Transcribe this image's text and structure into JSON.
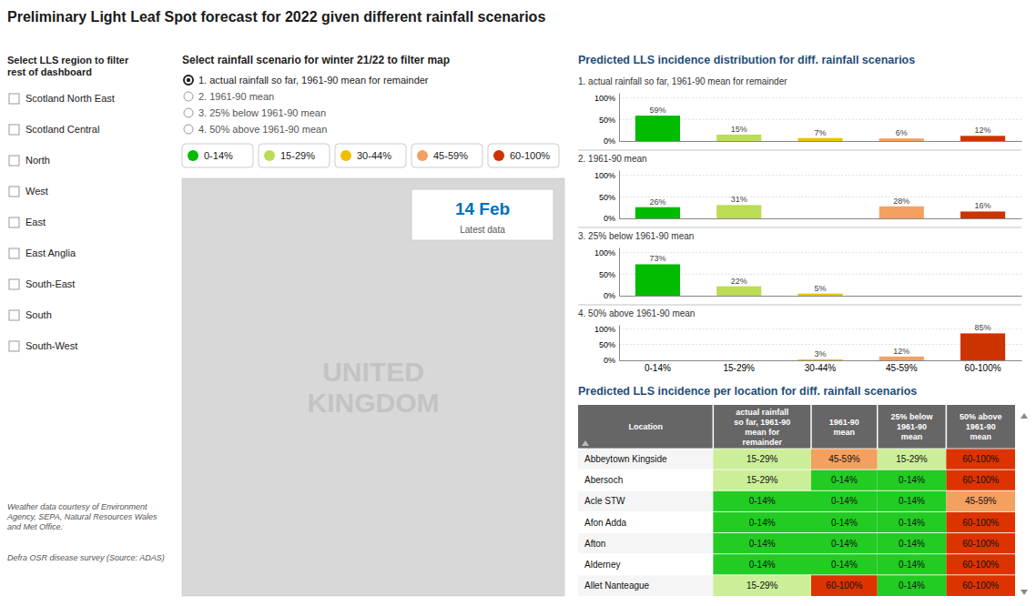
{
  "title": "Preliminary Light Leaf Spot forecast for 2022 given different rainfall scenarios",
  "region_filter": {
    "title": "Select LLS region to filter\nrest of dashboard",
    "options": [
      "Scotland North East",
      "Scotland Central",
      "North",
      "West",
      "East",
      "East Anglia",
      "South-East",
      "South",
      "South-West"
    ]
  },
  "scenario_filter": {
    "title": "Select rainfall scenario for winter 21/22 to filter map",
    "options": [
      "1. actual rainfall so far, 1961-90 mean for remainder",
      "2. 1961-90 mean",
      "3. 25% below 1961-90 mean",
      "4. 50% above 1961-90 mean"
    ]
  },
  "incidence_legend": [
    {
      "label": "0-14%",
      "color": "#00bb00"
    },
    {
      "label": "15-29%",
      "color": "#bbdd55"
    },
    {
      "label": "30-44%",
      "color": "#f0c000"
    },
    {
      "label": "45-59%",
      "color": "#f4a060"
    },
    {
      "label": "60-100%",
      "color": "#cc3300"
    }
  ],
  "map": {
    "text": "UNITED\nKINGDOM",
    "date": "14 Feb",
    "date_color": "#0070c0",
    "note": "Latest data"
  },
  "bar_section_title": "Predicted LLS incidence distribution for diff. rainfall scenarios",
  "chart_data": [
    {
      "type": "bar",
      "title": "1. actual rainfall so far, 1961-90 mean for remainder",
      "categories": [
        "0-14%",
        "15-29%",
        "30-44%",
        "45-59%",
        "60-100%"
      ],
      "values": [
        59,
        15,
        7,
        6,
        12
      ],
      "value_labels": [
        "59%",
        "15%",
        "7%",
        "6%",
        "12%"
      ],
      "colors": [
        "#00bb00",
        "#bbdd55",
        "#f0c000",
        "#f4a060",
        "#cc3300"
      ],
      "data_labels": true,
      "ylim": [
        0,
        112
      ],
      "yticks": [
        {
          "value": 0,
          "label": "0%"
        },
        {
          "value": 50,
          "label": "50%"
        },
        {
          "value": 100,
          "label": "100%"
        }
      ],
      "grid": true,
      "tick_labels": "y"
    },
    {
      "type": "bar",
      "title": "2. 1961-90 mean",
      "categories": [
        "0-14%",
        "15-29%",
        "30-44%",
        "45-59%",
        "60-100%"
      ],
      "values": [
        26,
        31,
        0,
        28,
        16
      ],
      "value_labels": [
        "26%",
        "31%",
        null,
        "28%",
        "16%"
      ],
      "colors": [
        "#00bb00",
        "#bbdd55",
        "#f0c000",
        "#f4a060",
        "#cc3300"
      ],
      "data_labels": true,
      "ylim": [
        0,
        112
      ],
      "yticks": [
        {
          "value": 0,
          "label": "0%"
        },
        {
          "value": 50,
          "label": "50%"
        },
        {
          "value": 100,
          "label": "100%"
        }
      ],
      "grid": true,
      "tick_labels": "y"
    },
    {
      "type": "bar",
      "title": "3. 25% below 1961-90 mean",
      "categories": [
        "0-14%",
        "15-29%",
        "30-44%",
        "45-59%",
        "60-100%"
      ],
      "values": [
        73,
        22,
        5,
        0,
        0
      ],
      "value_labels": [
        "73%",
        "22%",
        "5%",
        null,
        null
      ],
      "colors": [
        "#00bb00",
        "#bbdd55",
        "#f0c000",
        "#f4a060",
        "#cc3300"
      ],
      "data_labels": true,
      "ylim": [
        0,
        112
      ],
      "yticks": [
        {
          "value": 0,
          "label": "0%"
        },
        {
          "value": 50,
          "label": "50%"
        },
        {
          "value": 100,
          "label": "100%"
        }
      ],
      "grid": true,
      "tick_labels": "y"
    },
    {
      "type": "bar",
      "title": "4. 50% above 1961-90 mean",
      "categories": [
        "0-14%",
        "15-29%",
        "30-44%",
        "45-59%",
        "60-100%"
      ],
      "values": [
        0,
        0,
        3,
        12,
        85
      ],
      "value_labels": [
        null,
        null,
        "3%",
        "12%",
        "85%"
      ],
      "colors": [
        "#00bb00",
        "#bbdd55",
        "#f0c000",
        "#f4a060",
        "#cc3300"
      ],
      "data_labels": true,
      "ylim": [
        0,
        112
      ],
      "yticks": [
        {
          "value": 0,
          "label": "0%"
        },
        {
          "value": 50,
          "label": "50%"
        },
        {
          "value": 100,
          "label": "100%"
        }
      ],
      "grid": true
    }
  ],
  "table": {
    "title": "Predicted LLS incidence per location for diff. rainfall scenarios",
    "headers": [
      "Location",
      "actual rainfall\nso far, 1961-90\nmean for\nremainder",
      "1961-90\nmean",
      "25% below\n1961-90\nmean",
      "50% above\n1961-90\nmean"
    ],
    "rows": [
      [
        "Abbeytown Kingside",
        "15-29%",
        "45-59%",
        "15-29%",
        "60-100%"
      ],
      [
        "Abersoch",
        "15-29%",
        "0-14%",
        "0-14%",
        "60-100%"
      ],
      [
        "Acle STW",
        "0-14%",
        "0-14%",
        "0-14%",
        "45-59%"
      ],
      [
        "Afon Adda",
        "0-14%",
        "0-14%",
        "0-14%",
        "60-100%"
      ],
      [
        "Afton",
        "0-14%",
        "0-14%",
        "0-14%",
        "60-100%"
      ],
      [
        "Alderney",
        "0-14%",
        "0-14%",
        "0-14%",
        "60-100%"
      ],
      [
        "Allet Nanteague",
        "15-29%",
        "60-100%",
        "0-14%",
        "60-100%"
      ]
    ],
    "cell_colors": {
      "0-14%": "#22cc22",
      "15-29%": "#ccee99",
      "30-44%": "#f0c000",
      "45-59%": "#f4a060",
      "60-100%": "#dd3300"
    },
    "header_color": "#666666",
    "header_text_color": "#ffffff"
  },
  "footnotes": [
    "Weather data courtesy of Environment\nAgency, SEPA, Natural Resources Wales\nand Met Office.",
    "Defra OSR disease survey (Source: ADAS)"
  ]
}
